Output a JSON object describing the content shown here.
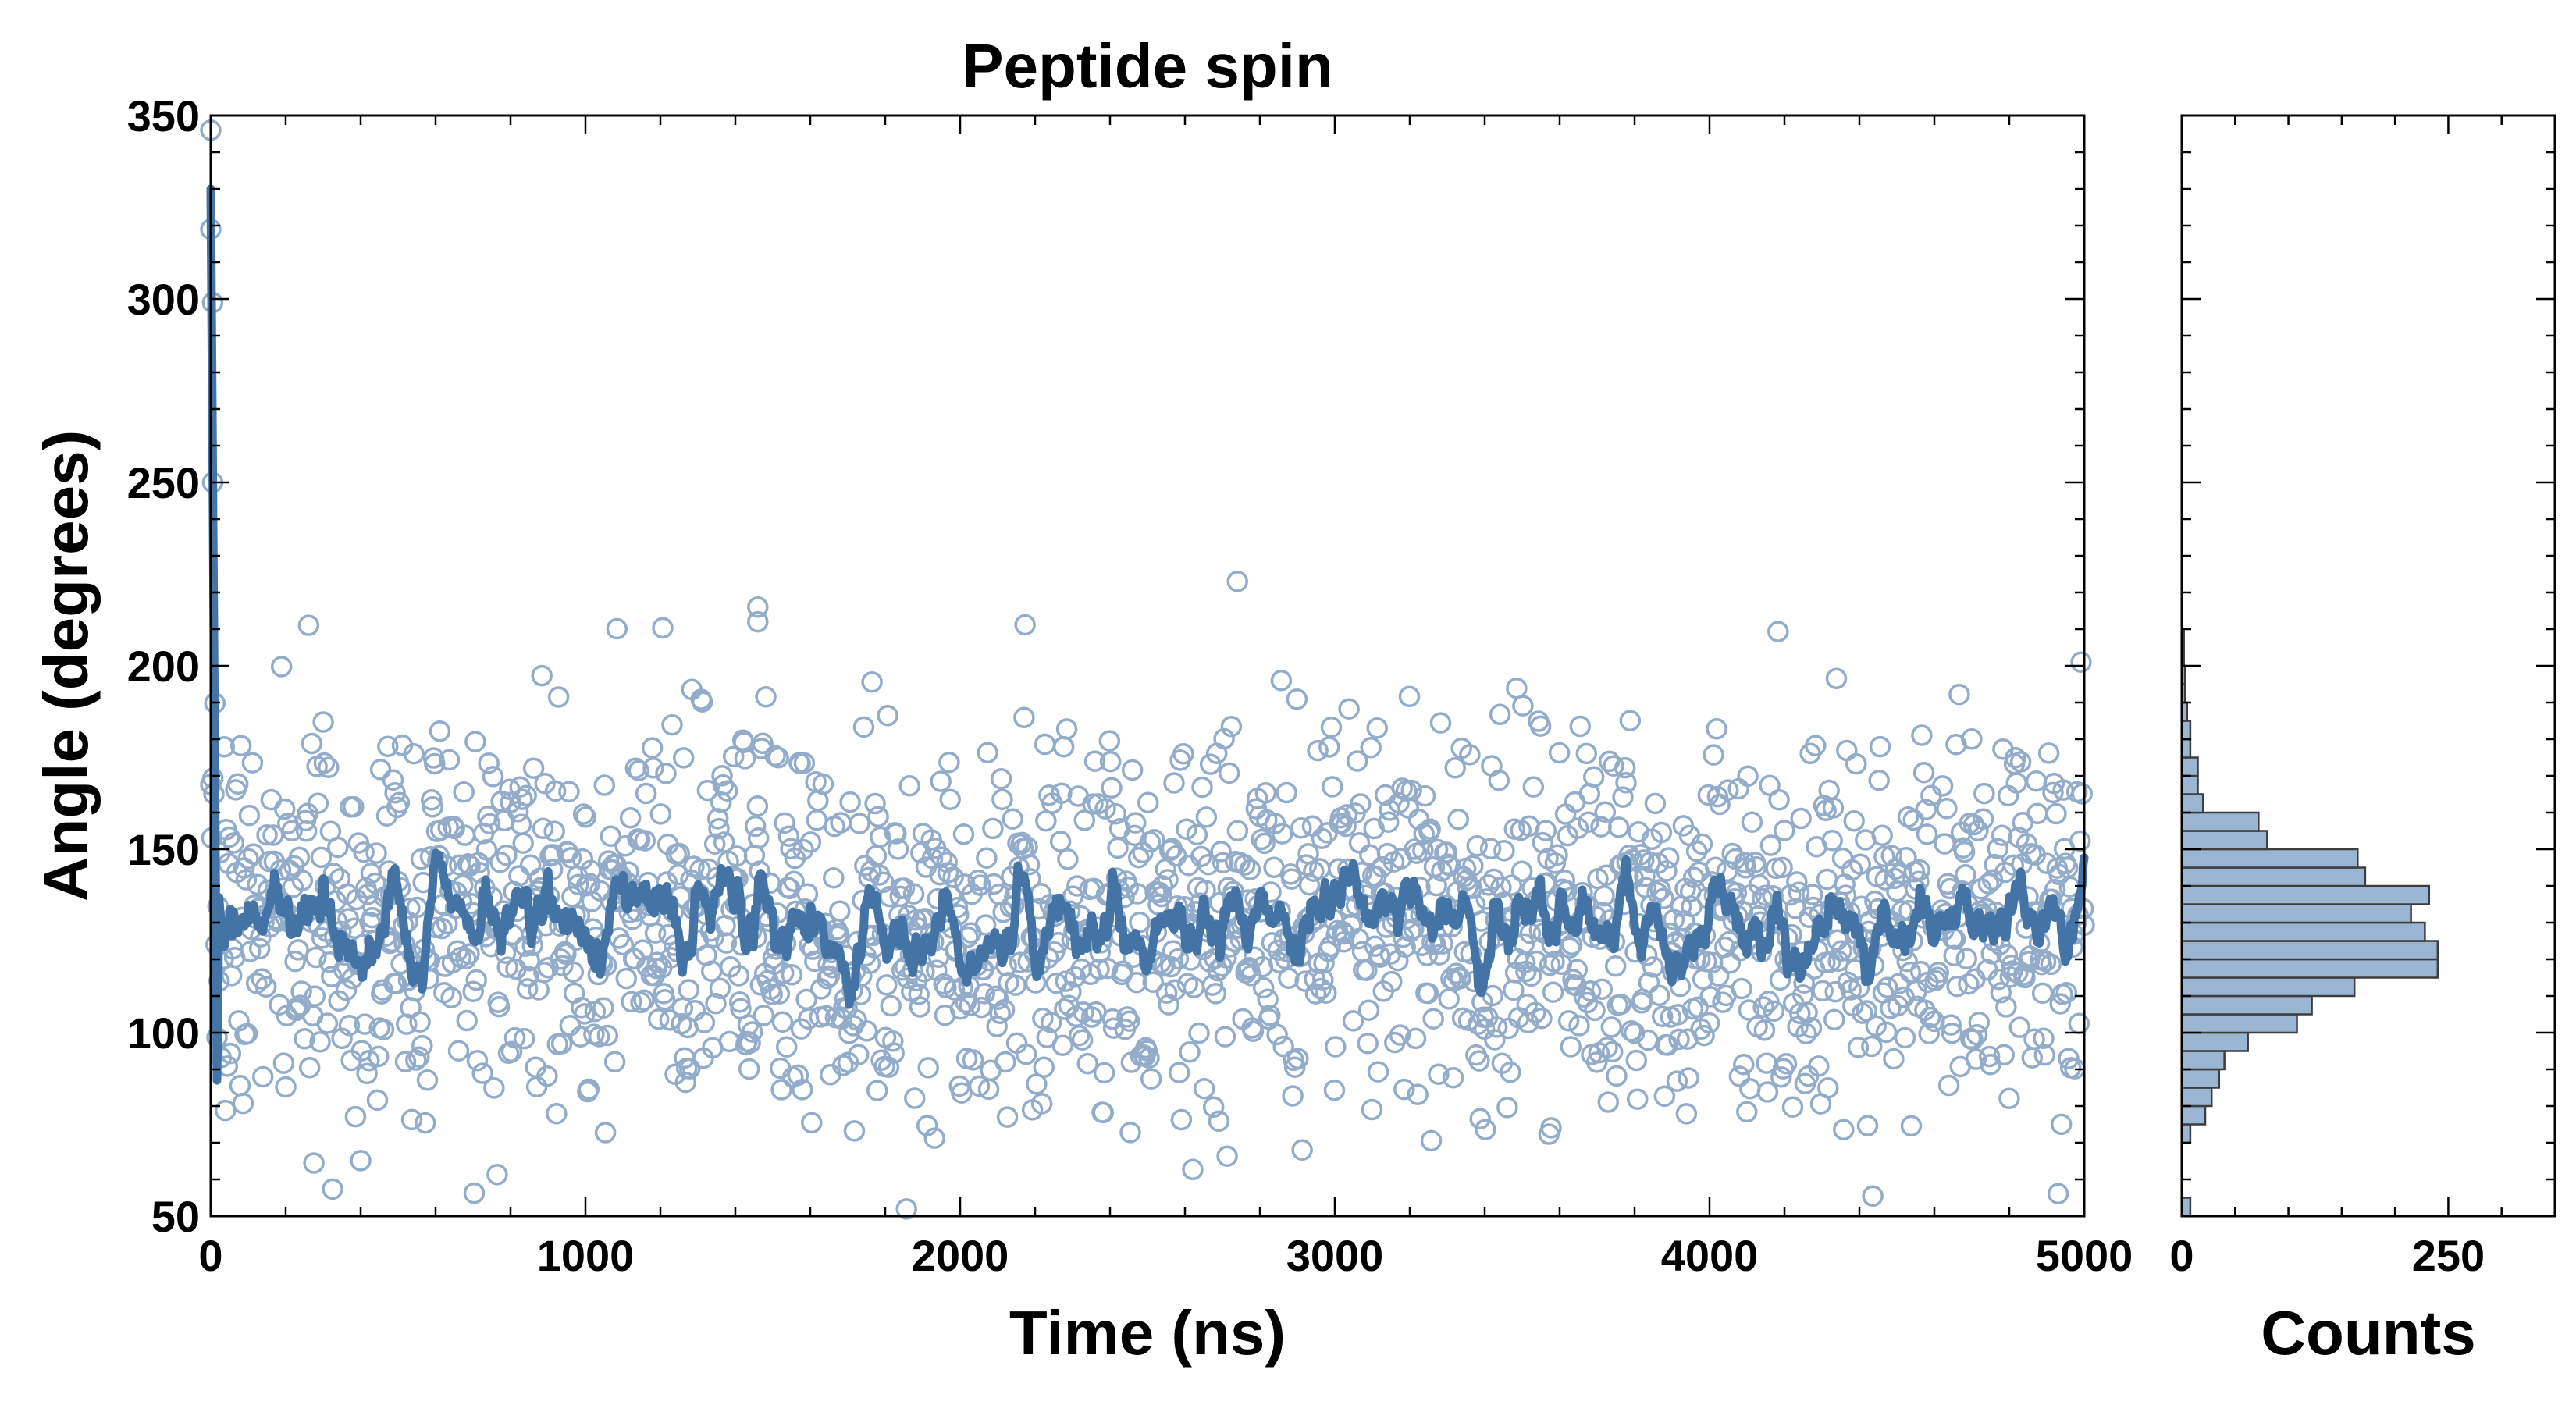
{
  "chart_data": [
    {
      "type": "scatter",
      "title": "Peptide spin",
      "xlabel": "Time (ns)",
      "ylabel": "Angle (degrees)",
      "xlim": [
        0,
        5000
      ],
      "ylim": [
        50,
        350
      ],
      "xticks": [
        0,
        1000,
        2000,
        3000,
        4000,
        5000
      ],
      "yticks": [
        50,
        100,
        150,
        200,
        250,
        300,
        350
      ],
      "x_minor_step": 200,
      "y_minor_step": 10,
      "series": [
        {
          "kind": "scatter",
          "marker": "open-circle",
          "color": "#92acc9",
          "points": {
            "x_start": 0,
            "x_end": 5000,
            "count": 1800,
            "mean": 130,
            "sd": 26,
            "seed": 7,
            "extras": [
              [
                0,
                346
              ],
              [
                0,
                319
              ],
              [
                5,
                299
              ],
              [
                5,
                250
              ],
              [
                1460,
                216
              ],
              [
                1460,
                212
              ],
              [
                2740,
                223
              ]
            ]
          }
        },
        {
          "kind": "line",
          "smoothing": "running-mean",
          "color": "#4474a6",
          "initial_angle": 330,
          "initial_low": 87
        }
      ]
    },
    {
      "type": "bar",
      "orientation": "horizontal",
      "xlabel": "Counts",
      "xlim": [
        0,
        350
      ],
      "xticks": [
        0,
        250
      ],
      "x_minor_step": 50,
      "ylim": [
        50,
        350
      ],
      "bin_edges": [
        50,
        55,
        60,
        65,
        70,
        75,
        80,
        85,
        90,
        95,
        100,
        105,
        110,
        115,
        120,
        125,
        130,
        135,
        140,
        145,
        150,
        155,
        160,
        165,
        170,
        175,
        180,
        185,
        190,
        195,
        200,
        205,
        210
      ],
      "values": [
        8,
        0,
        0,
        0,
        8,
        22,
        28,
        35,
        40,
        62,
        108,
        122,
        162,
        240,
        240,
        228,
        215,
        232,
        172,
        165,
        80,
        72,
        20,
        15,
        15,
        8,
        8,
        5,
        3,
        3,
        2,
        2
      ],
      "color": "#9ab6d3"
    }
  ]
}
